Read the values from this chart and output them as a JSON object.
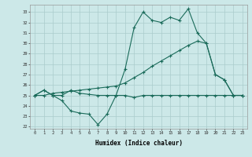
{
  "xlabel": "Humidex (Indice chaleur)",
  "bg_color": "#cce8e8",
  "grid_color": "#aacccc",
  "line_color": "#1a6b5a",
  "xlim": [
    -0.5,
    23.5
  ],
  "ylim": [
    21.8,
    33.7
  ],
  "yticks": [
    22,
    23,
    24,
    25,
    26,
    27,
    28,
    29,
    30,
    31,
    32,
    33
  ],
  "xticks": [
    0,
    1,
    2,
    3,
    4,
    5,
    6,
    7,
    8,
    9,
    10,
    11,
    12,
    13,
    14,
    15,
    16,
    17,
    18,
    19,
    20,
    21,
    22,
    23
  ],
  "line1_x": [
    0,
    1,
    2,
    3,
    4,
    5,
    6,
    7,
    8,
    9,
    10,
    11,
    12,
    13,
    14,
    15,
    16,
    17,
    18,
    19,
    20,
    21,
    22,
    23
  ],
  "line1_y": [
    25,
    25.5,
    25,
    24.5,
    23.5,
    23.3,
    23.2,
    22.2,
    23.2,
    25,
    25,
    24.8,
    25,
    25,
    25,
    25,
    25,
    25,
    25,
    25,
    25,
    25,
    25,
    25
  ],
  "line2_x": [
    0,
    1,
    2,
    3,
    4,
    5,
    6,
    7,
    8,
    9,
    10,
    11,
    12,
    13,
    14,
    15,
    16,
    17,
    18,
    19,
    20,
    21,
    22,
    23
  ],
  "line2_y": [
    25,
    25,
    25.2,
    25.3,
    25.4,
    25.5,
    25.6,
    25.7,
    25.8,
    25.9,
    26.2,
    26.7,
    27.2,
    27.8,
    28.3,
    28.8,
    29.3,
    29.8,
    30.2,
    30,
    27,
    26.5,
    25,
    25
  ],
  "line3_x": [
    0,
    1,
    2,
    3,
    4,
    5,
    6,
    7,
    8,
    9,
    10,
    11,
    12,
    13,
    14,
    15,
    16,
    17,
    18,
    19,
    20,
    21,
    22,
    23
  ],
  "line3_y": [
    25,
    25.5,
    25,
    25,
    25.5,
    25.2,
    25.1,
    25,
    25,
    25,
    27.5,
    31.5,
    33,
    32.2,
    32,
    32.5,
    32.2,
    33.3,
    31,
    30,
    27,
    26.5,
    25,
    25
  ]
}
